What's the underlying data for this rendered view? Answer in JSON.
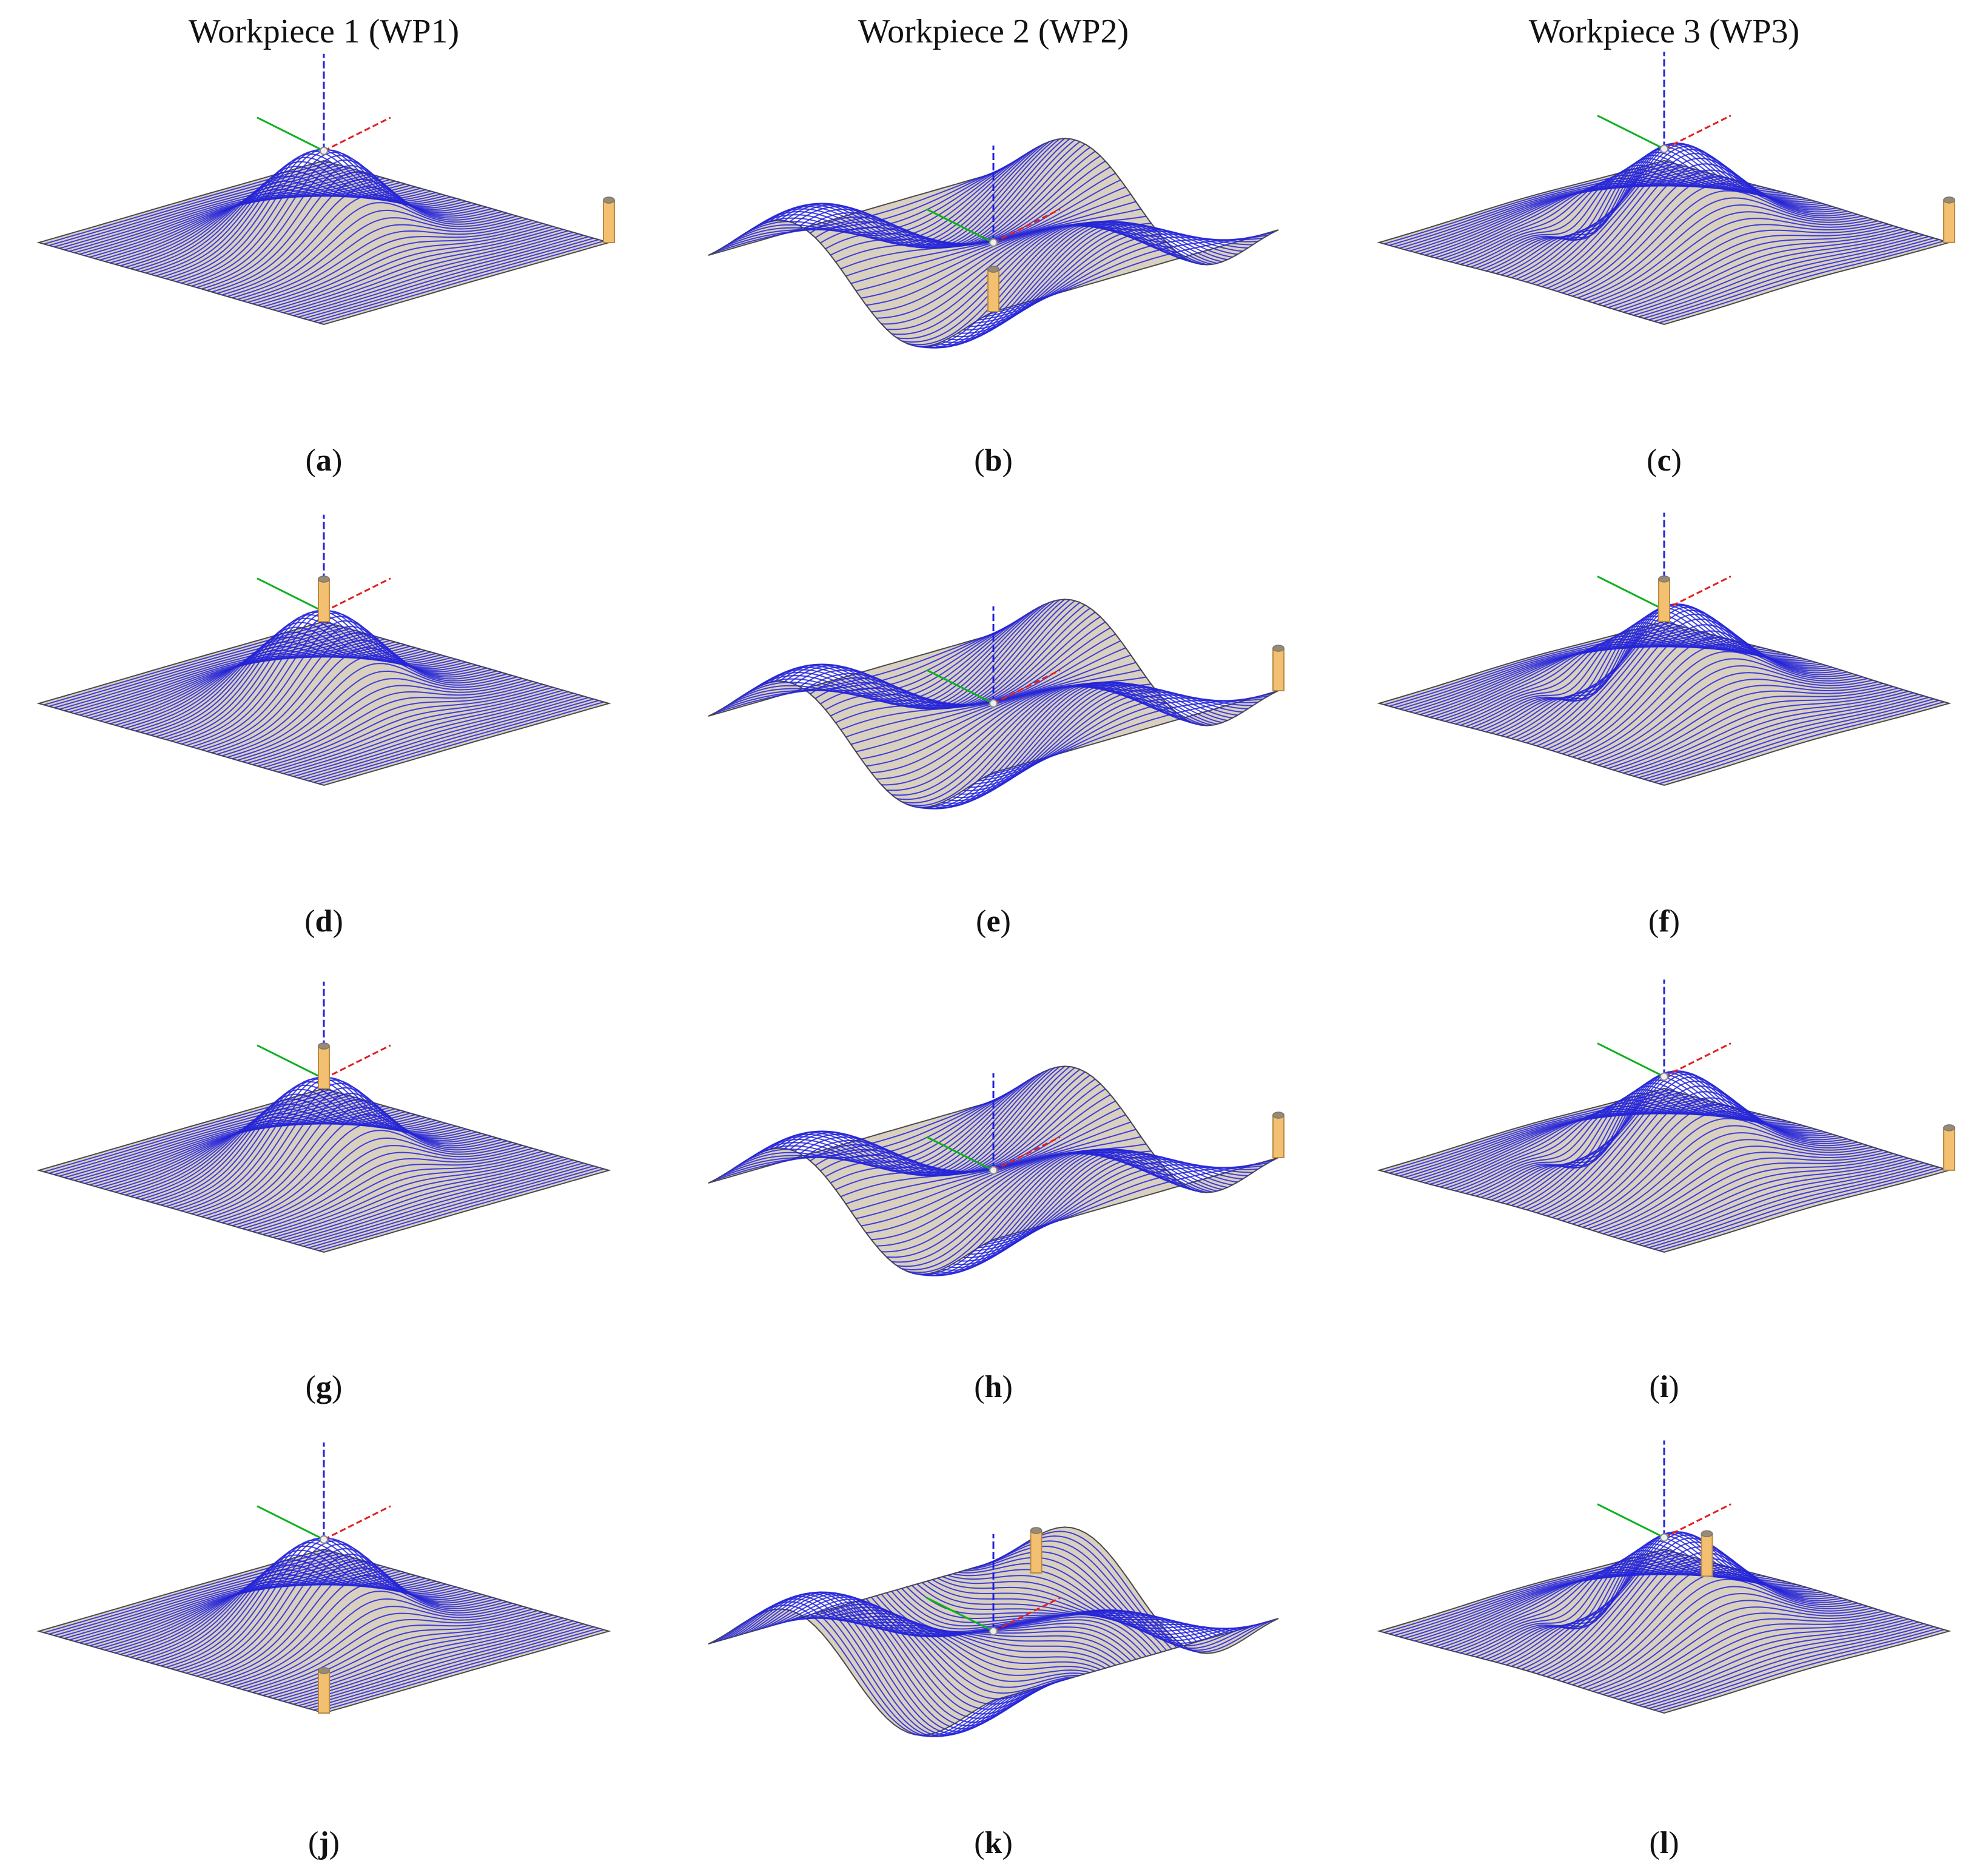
{
  "columns": [
    {
      "title": "Workpiece 1 (WP1)"
    },
    {
      "title": "Workpiece 2 (WP2)"
    },
    {
      "title": "Workpiece 3 (WP3)"
    }
  ],
  "panels": [
    {
      "letter": "a",
      "workpiece": 1,
      "tool": "right"
    },
    {
      "letter": "b",
      "workpiece": 2,
      "tool": "bottom"
    },
    {
      "letter": "c",
      "workpiece": 3,
      "tool": "right"
    },
    {
      "letter": "d",
      "workpiece": 1,
      "tool": "top"
    },
    {
      "letter": "e",
      "workpiece": 2,
      "tool": "right"
    },
    {
      "letter": "f",
      "workpiece": 3,
      "tool": "top"
    },
    {
      "letter": "g",
      "workpiece": 1,
      "tool": "top"
    },
    {
      "letter": "h",
      "workpiece": 2,
      "tool": "right"
    },
    {
      "letter": "i",
      "workpiece": 3,
      "tool": "right"
    },
    {
      "letter": "j",
      "workpiece": 1,
      "tool": "bottom"
    },
    {
      "letter": "k",
      "workpiece": 2,
      "tool": "top-left"
    },
    {
      "letter": "l",
      "workpiece": 3,
      "tool": "top-left"
    }
  ],
  "colors": {
    "surface": "#d9d0c0",
    "toolpath": "#2424d8",
    "outline": "#4a4a4a",
    "axis_x": "#e02020",
    "axis_y": "#10b020",
    "axis_z": "#2020e0",
    "tool": "#f2c070"
  }
}
